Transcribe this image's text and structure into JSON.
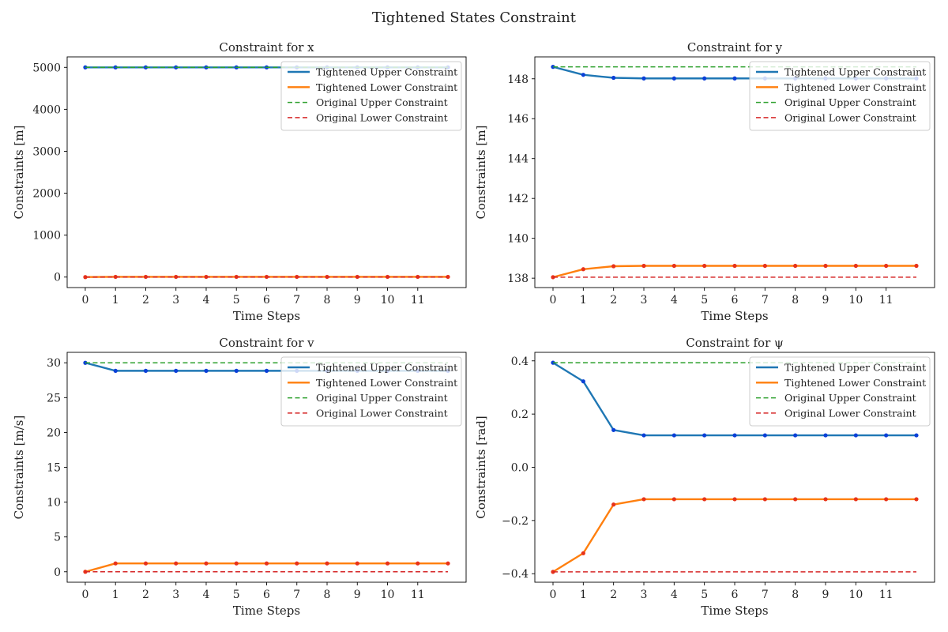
{
  "title": "Tightened States Constraint",
  "chart_data": [
    {
      "type": "line",
      "title": "Constraint for x",
      "xlabel": "Time Steps",
      "ylabel": "Constraints [m]",
      "x": [
        0,
        1,
        2,
        3,
        4,
        5,
        6,
        7,
        8,
        9,
        10,
        11,
        12
      ],
      "xticks": [
        0,
        1,
        2,
        3,
        4,
        5,
        6,
        7,
        8,
        9,
        10,
        11
      ],
      "xlim": [
        -0.6,
        12.6
      ],
      "ylim": [
        -250,
        5250
      ],
      "yticks": [
        0,
        1000,
        2000,
        3000,
        4000,
        5000
      ],
      "ytick_labels": [
        "0",
        "1000",
        "2000",
        "3000",
        "4000",
        "5000"
      ],
      "legend": "top-right",
      "series": [
        {
          "name": "Tightened Upper Constraint",
          "color": "#1f77b4",
          "style": "solid",
          "markers": true,
          "values": [
            5000,
            5000,
            5000,
            5000,
            5000,
            5000,
            5000,
            5000,
            5000,
            5000,
            5000,
            5000,
            5000
          ]
        },
        {
          "name": "Tightened Lower Constraint",
          "color": "#ff7f0e",
          "style": "solid",
          "markers": true,
          "values": [
            0,
            5,
            5,
            5,
            5,
            5,
            5,
            5,
            5,
            5,
            5,
            5,
            5
          ]
        },
        {
          "name": "Original Upper Constraint",
          "color": "#2ca02c",
          "style": "dashed",
          "markers": false,
          "values": [
            5000,
            5000,
            5000,
            5000,
            5000,
            5000,
            5000,
            5000,
            5000,
            5000,
            5000,
            5000,
            5000
          ]
        },
        {
          "name": "Original Lower Constraint",
          "color": "#d62728",
          "style": "dashed",
          "markers": false,
          "values": [
            0,
            0,
            0,
            0,
            0,
            0,
            0,
            0,
            0,
            0,
            0,
            0,
            0
          ]
        }
      ]
    },
    {
      "type": "line",
      "title": "Constraint for y",
      "xlabel": "Time Steps",
      "ylabel": "Constraints [m]",
      "x": [
        0,
        1,
        2,
        3,
        4,
        5,
        6,
        7,
        8,
        9,
        10,
        11,
        12
      ],
      "xticks": [
        0,
        1,
        2,
        3,
        4,
        5,
        6,
        7,
        8,
        9,
        10,
        11
      ],
      "xlim": [
        -0.6,
        12.6
      ],
      "ylim": [
        137.53,
        149.1
      ],
      "yticks": [
        138,
        140,
        142,
        144,
        146,
        148
      ],
      "ytick_labels": [
        "138",
        "140",
        "142",
        "144",
        "146",
        "148"
      ],
      "legend": "top-right",
      "series": [
        {
          "name": "Tightened Upper Constraint",
          "color": "#1f77b4",
          "style": "solid",
          "markers": true,
          "values": [
            148.6,
            148.2,
            148.05,
            148.02,
            148.02,
            148.02,
            148.02,
            148.02,
            148.02,
            148.02,
            148.02,
            148.02,
            148.02
          ]
        },
        {
          "name": "Tightened Lower Constraint",
          "color": "#ff7f0e",
          "style": "solid",
          "markers": true,
          "values": [
            138.05,
            138.45,
            138.6,
            138.62,
            138.62,
            138.62,
            138.62,
            138.62,
            138.62,
            138.62,
            138.62,
            138.62,
            138.62
          ]
        },
        {
          "name": "Original Upper Constraint",
          "color": "#2ca02c",
          "style": "dashed",
          "markers": false,
          "values": [
            148.6,
            148.6,
            148.6,
            148.6,
            148.6,
            148.6,
            148.6,
            148.6,
            148.6,
            148.6,
            148.6,
            148.6,
            148.6
          ]
        },
        {
          "name": "Original Lower Constraint",
          "color": "#d62728",
          "style": "dashed",
          "markers": false,
          "values": [
            138.05,
            138.05,
            138.05,
            138.05,
            138.05,
            138.05,
            138.05,
            138.05,
            138.05,
            138.05,
            138.05,
            138.05,
            138.05
          ]
        }
      ]
    },
    {
      "type": "line",
      "title": "Constraint for v",
      "xlabel": "Time Steps",
      "ylabel": "Constraints [m/s]",
      "x": [
        0,
        1,
        2,
        3,
        4,
        5,
        6,
        7,
        8,
        9,
        10,
        11,
        12
      ],
      "xticks": [
        0,
        1,
        2,
        3,
        4,
        5,
        6,
        7,
        8,
        9,
        10,
        11
      ],
      "xlim": [
        -0.6,
        12.6
      ],
      "ylim": [
        -1.5,
        31.5
      ],
      "yticks": [
        0,
        5,
        10,
        15,
        20,
        25,
        30
      ],
      "ytick_labels": [
        "0",
        "5",
        "10",
        "15",
        "20",
        "25",
        "30"
      ],
      "legend": "top-right",
      "series": [
        {
          "name": "Tightened Upper Constraint",
          "color": "#1f77b4",
          "style": "solid",
          "markers": true,
          "values": [
            30,
            28.85,
            28.85,
            28.85,
            28.85,
            28.85,
            28.85,
            28.85,
            28.85,
            28.85,
            28.85,
            28.85,
            28.85
          ]
        },
        {
          "name": "Tightened Lower Constraint",
          "color": "#ff7f0e",
          "style": "solid",
          "markers": true,
          "values": [
            0,
            1.2,
            1.2,
            1.2,
            1.2,
            1.2,
            1.2,
            1.2,
            1.2,
            1.2,
            1.2,
            1.2,
            1.2
          ]
        },
        {
          "name": "Original Upper Constraint",
          "color": "#2ca02c",
          "style": "dashed",
          "markers": false,
          "values": [
            30,
            30,
            30,
            30,
            30,
            30,
            30,
            30,
            30,
            30,
            30,
            30,
            30
          ]
        },
        {
          "name": "Original Lower Constraint",
          "color": "#d62728",
          "style": "dashed",
          "markers": false,
          "values": [
            0,
            0,
            0,
            0,
            0,
            0,
            0,
            0,
            0,
            0,
            0,
            0,
            0
          ]
        }
      ]
    },
    {
      "type": "line",
      "title": "Constraint for ψ",
      "xlabel": "Time Steps",
      "ylabel": "Constraints [rad]",
      "x": [
        0,
        1,
        2,
        3,
        4,
        5,
        6,
        7,
        8,
        9,
        10,
        11,
        12
      ],
      "xticks": [
        0,
        1,
        2,
        3,
        4,
        5,
        6,
        7,
        8,
        9,
        10,
        11
      ],
      "xlim": [
        -0.6,
        12.6
      ],
      "ylim": [
        -0.432,
        0.432
      ],
      "yticks": [
        -0.4,
        -0.2,
        0.0,
        0.2,
        0.4
      ],
      "ytick_labels": [
        "−0.4",
        "−0.2",
        "0.0",
        "0.2",
        "0.4"
      ],
      "legend": "top-right",
      "series": [
        {
          "name": "Tightened Upper Constraint",
          "color": "#1f77b4",
          "style": "solid",
          "markers": true,
          "values": [
            0.393,
            0.323,
            0.14,
            0.12,
            0.12,
            0.12,
            0.12,
            0.12,
            0.12,
            0.12,
            0.12,
            0.12,
            0.12
          ]
        },
        {
          "name": "Tightened Lower Constraint",
          "color": "#ff7f0e",
          "style": "solid",
          "markers": true,
          "values": [
            -0.393,
            -0.323,
            -0.14,
            -0.12,
            -0.12,
            -0.12,
            -0.12,
            -0.12,
            -0.12,
            -0.12,
            -0.12,
            -0.12,
            -0.12
          ]
        },
        {
          "name": "Original Upper Constraint",
          "color": "#2ca02c",
          "style": "dashed",
          "markers": false,
          "values": [
            0.393,
            0.393,
            0.393,
            0.393,
            0.393,
            0.393,
            0.393,
            0.393,
            0.393,
            0.393,
            0.393,
            0.393,
            0.393
          ]
        },
        {
          "name": "Original Lower Constraint",
          "color": "#d62728",
          "style": "dashed",
          "markers": false,
          "values": [
            -0.393,
            -0.393,
            -0.393,
            -0.393,
            -0.393,
            -0.393,
            -0.393,
            -0.393,
            -0.393,
            -0.393,
            -0.393,
            -0.393,
            -0.393
          ]
        }
      ]
    }
  ]
}
